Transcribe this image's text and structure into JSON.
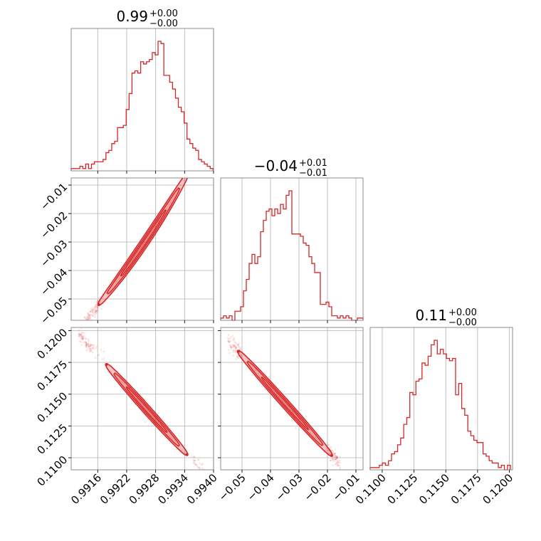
{
  "chart_data": {
    "type": "corner",
    "color": "#d62728",
    "parameters": [
      {
        "title_value": "0.99",
        "title_upper": "+0.00",
        "title_lower": "−0.00"
      },
      {
        "title_value": "−0.04",
        "title_upper": "+0.01",
        "title_lower": "−0.01"
      },
      {
        "title_value": "0.11",
        "title_upper": "+0.00",
        "title_lower": "−0.00"
      }
    ],
    "axes": {
      "p0": {
        "range": [
          0.99105,
          0.994
        ],
        "ticks": [
          0.9916,
          0.9922,
          0.9928,
          0.9934,
          0.994
        ],
        "tick_labels": [
          "0.9916",
          "0.9922",
          "0.9928",
          "0.9934",
          "0.9940"
        ]
      },
      "p1": {
        "range": [
          -0.0575,
          -0.0075
        ],
        "ticks": [
          -0.05,
          -0.04,
          -0.03,
          -0.02,
          -0.01
        ],
        "tick_labels": [
          "−0.05",
          "−0.04",
          "−0.03",
          "−0.02",
          "−0.01"
        ]
      },
      "p2": {
        "range": [
          0.10905,
          0.12025
        ],
        "ticks": [
          0.11,
          0.1125,
          0.115,
          0.1175,
          0.12
        ],
        "tick_labels": [
          "0.1100",
          "0.1125",
          "0.1150",
          "0.1175",
          "0.1200"
        ]
      }
    },
    "histograms": [
      {
        "param": "p0",
        "bin_edges": [
          0.99105,
          0.99111,
          0.99117,
          0.99123,
          0.99129,
          0.99135,
          0.99141,
          0.99147,
          0.99153,
          0.99159,
          0.99165,
          0.99171,
          0.99177,
          0.99183,
          0.99189,
          0.99195,
          0.99201,
          0.99207,
          0.99213,
          0.99219,
          0.99225,
          0.99231,
          0.99237,
          0.99243,
          0.99249,
          0.99255,
          0.99261,
          0.99267,
          0.99273,
          0.99279,
          0.99285,
          0.99291,
          0.99297,
          0.99303,
          0.99309,
          0.99315,
          0.99321,
          0.99327,
          0.99333,
          0.99339,
          0.99345,
          0.99351,
          0.99357,
          0.99363,
          0.99369,
          0.99375,
          0.99381,
          0.99387,
          0.99393,
          0.99399
        ],
        "counts": [
          1,
          1,
          1,
          2,
          1,
          3,
          1,
          3,
          4,
          4,
          4,
          5,
          8,
          9,
          12,
          13,
          19,
          19,
          20,
          27,
          34,
          43,
          44,
          43,
          48,
          47,
          48,
          49,
          52,
          51,
          57,
          56,
          42,
          42,
          39,
          36,
          32,
          28,
          26,
          21,
          14,
          12,
          10,
          9,
          5,
          4,
          3,
          2,
          1
        ]
      },
      {
        "param": "p1",
        "bin_edges": [
          -0.0575,
          -0.0565,
          -0.0555,
          -0.0545,
          -0.0535,
          -0.0525,
          -0.0515,
          -0.0505,
          -0.0495,
          -0.0485,
          -0.0475,
          -0.0465,
          -0.0455,
          -0.0445,
          -0.0435,
          -0.0425,
          -0.0415,
          -0.0405,
          -0.0395,
          -0.0385,
          -0.0375,
          -0.0365,
          -0.0355,
          -0.0345,
          -0.0335,
          -0.0325,
          -0.0315,
          -0.0305,
          -0.0295,
          -0.0285,
          -0.0275,
          -0.0265,
          -0.0255,
          -0.0245,
          -0.0235,
          -0.0225,
          -0.0215,
          -0.0205,
          -0.0195,
          -0.0185,
          -0.0175,
          -0.0165,
          -0.0155,
          -0.0145,
          -0.0135,
          -0.0125,
          -0.0115,
          -0.0105,
          -0.0095,
          -0.0085,
          -0.0075
        ],
        "counts": [
          1,
          2,
          1,
          2,
          0,
          4,
          4,
          6,
          13,
          18,
          25,
          29,
          25,
          28,
          39,
          44,
          48,
          49,
          46,
          49,
          47,
          51,
          49,
          55,
          57,
          38,
          38,
          38,
          37,
          34,
          33,
          28,
          25,
          21,
          21,
          7,
          7,
          8,
          6,
          2,
          2,
          1,
          2,
          1,
          2,
          1,
          0,
          0,
          1,
          1
        ]
      },
      {
        "param": "p2",
        "bin_edges": [
          0.10905,
          0.10929,
          0.10953,
          0.10977,
          0.11001,
          0.11025,
          0.11049,
          0.11073,
          0.11097,
          0.11121,
          0.11145,
          0.11169,
          0.11193,
          0.11217,
          0.11241,
          0.11265,
          0.11289,
          0.11313,
          0.11337,
          0.11361,
          0.11385,
          0.11409,
          0.11433,
          0.11457,
          0.11481,
          0.11505,
          0.11529,
          0.11553,
          0.11577,
          0.11601,
          0.11625,
          0.11649,
          0.11673,
          0.11697,
          0.11721,
          0.11745,
          0.11769,
          0.11793,
          0.11817,
          0.11841,
          0.11865,
          0.11889,
          0.11913,
          0.11937,
          0.11961,
          0.11985,
          0.12009
        ],
        "counts": [
          1,
          1,
          1,
          2,
          3,
          2,
          4,
          7,
          8,
          11,
          14,
          20,
          23,
          34,
          33,
          39,
          40,
          47,
          46,
          50,
          55,
          57,
          51,
          53,
          51,
          49,
          48,
          49,
          33,
          38,
          27,
          24,
          17,
          15,
          13,
          12,
          12,
          7,
          6,
          4,
          3,
          3,
          1,
          2,
          0,
          2
        ]
      }
    ],
    "pairs": [
      {
        "x_param": "p0",
        "y_param": "p1",
        "relation": "y = -0.052 + 20.88*(x - 0.99162) + 2200*(x - 0.99162)^2",
        "x_span": [
          0.9913,
          0.9939
        ]
      },
      {
        "x_param": "p0",
        "y_param": "p2",
        "relation": "y = 0.1198 - 4.25*(x - 0.9912)",
        "x_span": [
          0.9912,
          0.9939
        ]
      },
      {
        "x_param": "p1",
        "y_param": "p2",
        "relation": "y = 0.1188 - 0.25*(x + 0.053)",
        "x_span": [
          -0.055,
          -0.0155
        ]
      }
    ]
  }
}
